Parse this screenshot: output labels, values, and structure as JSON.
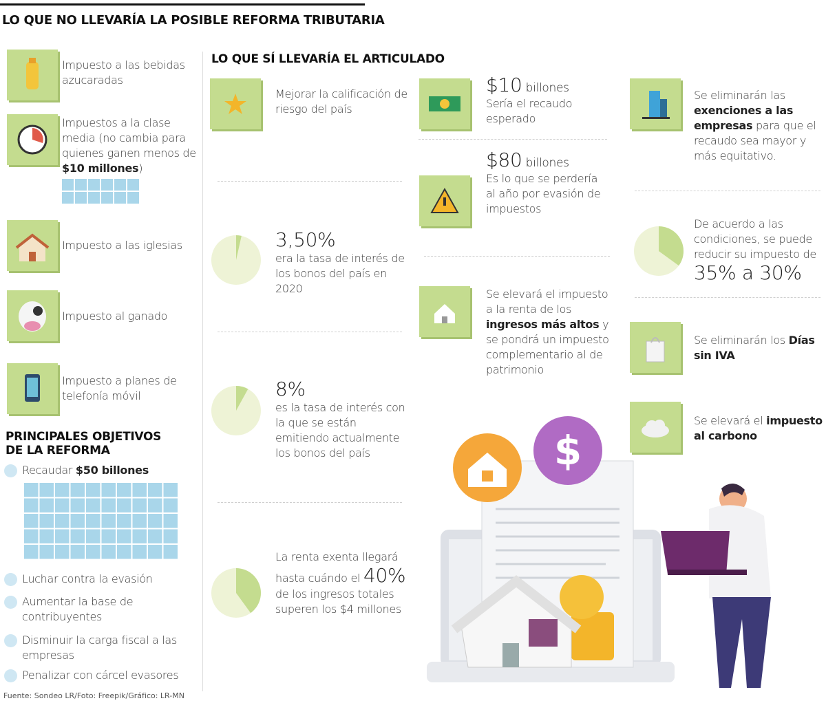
{
  "header": {
    "title": "LO QUE NO LLEVARÍA LA POSIBLE REFORMA TRIBUTARIA"
  },
  "not_included": [
    {
      "parts": [
        {
          "text": "Impuesto a las bebidas azucaradas",
          "style": "plain"
        }
      ]
    },
    {
      "parts": [
        {
          "text": "Impuestos a la clase media (no cambia para quienes ganen menos de ",
          "style": "plain"
        },
        {
          "text": "$10 millones",
          "style": "bold"
        },
        {
          "text": ")",
          "style": "plain"
        }
      ]
    },
    {
      "parts": [
        {
          "text": "Impuesto a las iglesias",
          "style": "plain"
        }
      ]
    },
    {
      "parts": [
        {
          "text": "Impuesto al ganado",
          "style": "plain"
        }
      ]
    },
    {
      "parts": [
        {
          "text": "Impuesto a planes de telefonía móvil",
          "style": "plain"
        }
      ]
    }
  ],
  "objectives": {
    "title": "PRINCIPALES OBJETIVOS DE LA REFORMA",
    "items": [
      {
        "parts": [
          {
            "text": "Recaudar ",
            "style": "plain"
          },
          {
            "text": "$50 billones",
            "style": "bold"
          }
        ]
      },
      {
        "parts": [
          {
            "text": "Luchar contra la evasión",
            "style": "plain"
          }
        ]
      },
      {
        "parts": [
          {
            "text": "Aumentar la base de contribuyentes",
            "style": "plain"
          }
        ]
      },
      {
        "parts": [
          {
            "text": "Disminuir la carga fiscal a las empresas",
            "style": "plain"
          }
        ]
      },
      {
        "parts": [
          {
            "text": "Penalizar con cárcel evasores",
            "style": "plain"
          }
        ]
      }
    ]
  },
  "included": {
    "title": "LO QUE SÍ LLEVARÍA EL ARTICULADO",
    "items": [
      {
        "parts": [
          {
            "text": "Mejorar la calificación de riesgo del país",
            "style": "plain"
          }
        ]
      },
      {
        "pie": 3.5,
        "parts": [
          {
            "text": "3,50%",
            "style": "big"
          },
          {
            "text": "era la tasa de interés de los bonos del país en 2020",
            "style": "block"
          }
        ]
      },
      {
        "pie": 8,
        "parts": [
          {
            "text": "8%",
            "style": "big"
          },
          {
            "text": "es la tasa de interés con la que se están emitiendo actualmente los bonos del país",
            "style": "block"
          }
        ]
      },
      {
        "pie": 40,
        "parts": [
          {
            "text": "La renta exenta llegará hasta cuándo el ",
            "style": "plain"
          },
          {
            "text": "40%",
            "style": "big"
          },
          {
            "text": " de los ingresos totales superen los $4 millones",
            "style": "plain"
          }
        ]
      },
      {
        "parts": [
          {
            "text": "$10",
            "style": "big"
          },
          {
            "text": " billones",
            "style": "mid"
          },
          {
            "text": "Sería el recaudo esperado",
            "style": "block"
          }
        ]
      },
      {
        "parts": [
          {
            "text": "$80",
            "style": "big"
          },
          {
            "text": " billones",
            "style": "mid"
          },
          {
            "text": "Es lo que se perdería al año por evasión de impuestos",
            "style": "block"
          }
        ]
      },
      {
        "parts": [
          {
            "text": "Se elevará el impuesto a la renta de los ",
            "style": "plain"
          },
          {
            "text": "ingresos más altos",
            "style": "bold"
          },
          {
            "text": " y se pondrá un impuesto complementario al de patrimonio",
            "style": "plain"
          }
        ]
      },
      {
        "parts": [
          {
            "text": "Se eliminarán las ",
            "style": "plain"
          },
          {
            "text": "exenciones a las empresas",
            "style": "bold"
          },
          {
            "text": " para que el recaudo sea mayor y más equitativo.",
            "style": "plain"
          }
        ]
      },
      {
        "pie": 35,
        "parts": [
          {
            "text": "De acuerdo a las condiciones, se puede reducir su impuesto de ",
            "style": "plain"
          },
          {
            "text": "35% a 30%",
            "style": "big"
          }
        ]
      },
      {
        "parts": [
          {
            "text": "Se eliminarán los ",
            "style": "plain"
          },
          {
            "text": "Días sin IVA",
            "style": "bold"
          }
        ]
      },
      {
        "parts": [
          {
            "text": "Se elevará el ",
            "style": "plain"
          },
          {
            "text": "impuesto al carbono",
            "style": "bold"
          }
        ]
      }
    ]
  },
  "footer": {
    "source": "Fuente: Sondeo LR/Foto: Freepik/Gráfico: LR-MN"
  }
}
